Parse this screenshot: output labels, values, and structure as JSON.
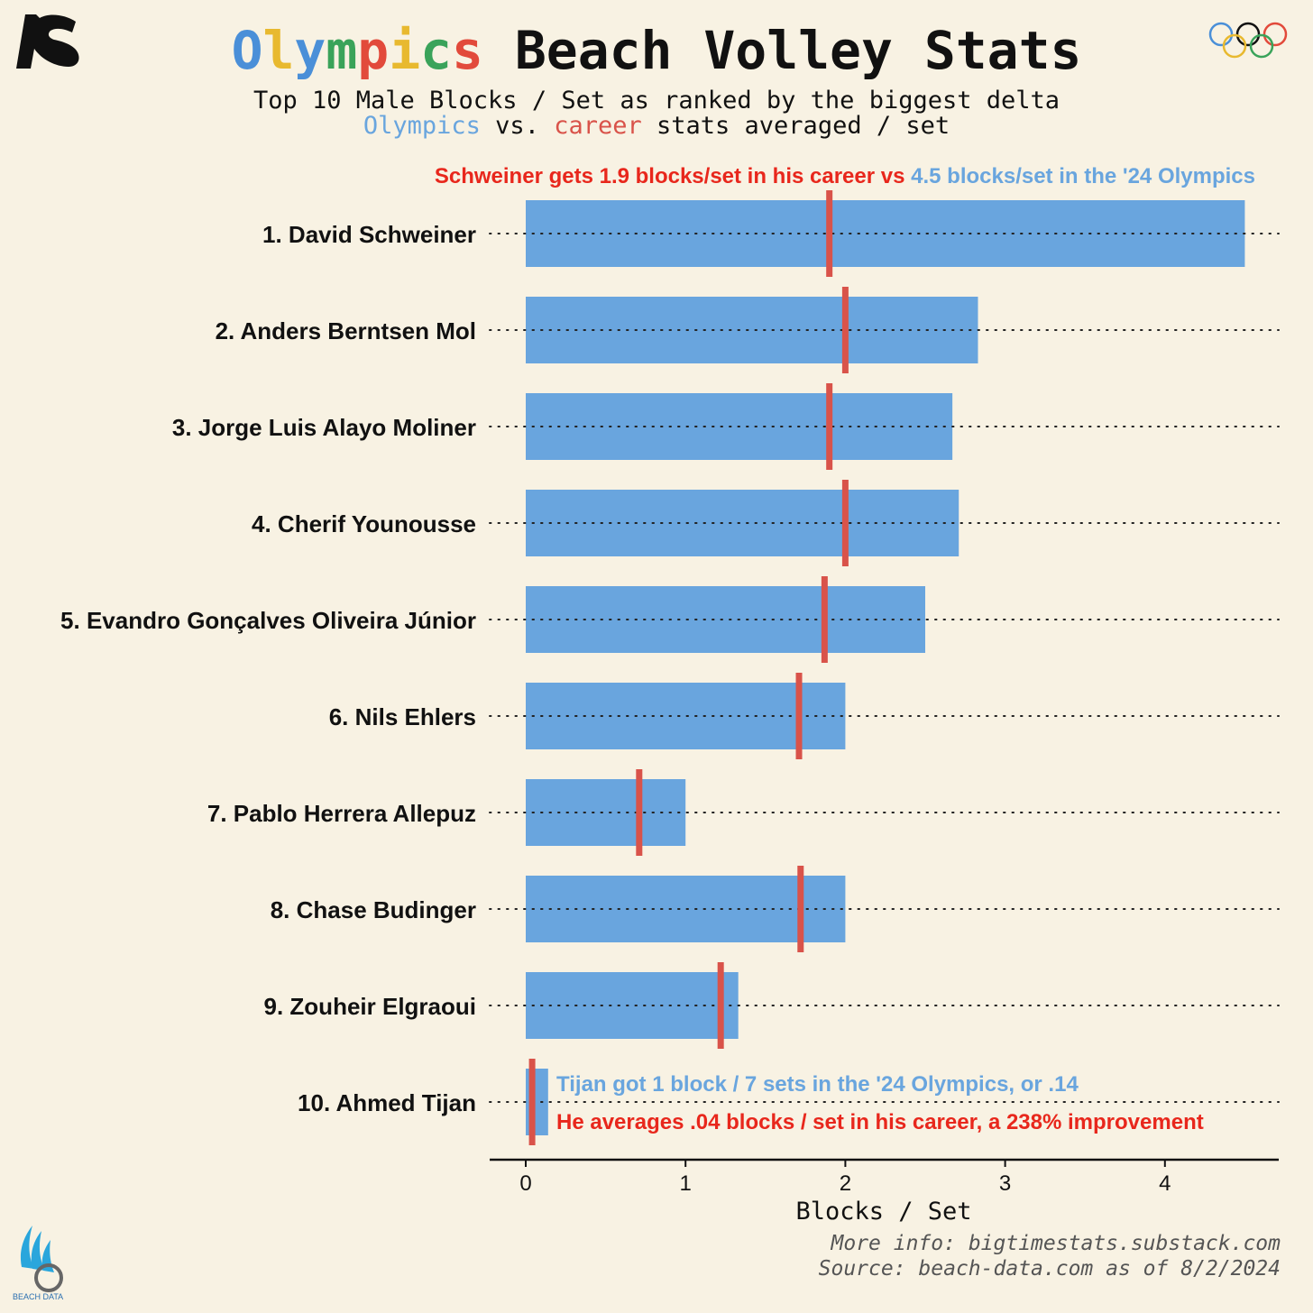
{
  "header": {
    "title_letters": [
      {
        "ch": "O",
        "color": "#4a8fd8"
      },
      {
        "ch": "l",
        "color": "#e8b92f"
      },
      {
        "ch": "y",
        "color": "#4a8fd8"
      },
      {
        "ch": "m",
        "color": "#3aa35a"
      },
      {
        "ch": "p",
        "color": "#e24a3b"
      },
      {
        "ch": "i",
        "color": "#e8b92f"
      },
      {
        "ch": "c",
        "color": "#3aa35a"
      },
      {
        "ch": "s",
        "color": "#e24a3b"
      }
    ],
    "title_rest": " Beach Volley Stats",
    "subtitle_line1": "Top 10 Male Blocks / Set as ranked by the biggest delta",
    "subtitle_olympics": "Olympics",
    "subtitle_vs": " vs. ",
    "subtitle_career": "career",
    "subtitle_rest": " stats averaged / set",
    "beach_logo_text": "BEACH DATA"
  },
  "colors": {
    "background": "#f8f2e3",
    "olympic_bar": "#69a5de",
    "career_marker": "#d9534a",
    "annotation_red": "#e8271c",
    "annotation_blue": "#69a5de"
  },
  "chart_data": {
    "type": "bar",
    "orientation": "horizontal",
    "categories": [
      "1. David Schweiner",
      "2. Anders Berntsen Mol",
      "3. Jorge Luis  Alayo Moliner",
      "4. Cherif Younousse",
      "5. Evandro Gonçalves Oliveira Júnior",
      "6. Nils Ehlers",
      "7. Pablo Herrera Allepuz",
      "8. Chase Budinger",
      "9. Zouheir Elgraoui",
      "10. Ahmed Tijan"
    ],
    "series": [
      {
        "values": [
          4.5,
          2.83,
          2.67,
          2.71,
          2.5,
          2.0,
          1.0,
          2.0,
          1.33,
          0.14
        ]
      },
      {
        "values": [
          1.9,
          2.0,
          1.9,
          2.0,
          1.87,
          1.71,
          0.71,
          1.72,
          1.22,
          0.04
        ]
      }
    ],
    "xlabel": "Blocks / Set",
    "ylabel": "",
    "xlim": [
      0,
      4.7
    ],
    "xticks": [
      0,
      1,
      2,
      3,
      4
    ],
    "grid": "dotted row guide lines",
    "annotations": {
      "top_red": "Schweiner gets 1.9 blocks/set in his career vs ",
      "top_blue": "4.5 blocks/set in the '24 Olympics",
      "tijan_blue": "Tijan got 1 block / 7 sets in the '24 Olympics, or .14",
      "tijan_red": "He averages .04 blocks / set in his career, a 238% improvement"
    }
  },
  "footer": {
    "line1": "More info: bigtimestats.substack.com",
    "line2": "Source: beach-data.com as of 8/2/2024"
  }
}
